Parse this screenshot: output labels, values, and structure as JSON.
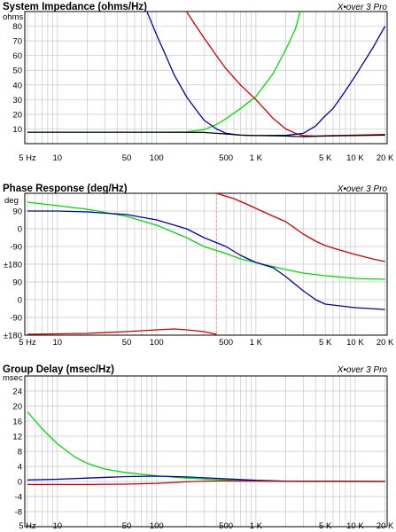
{
  "chart_data": [
    {
      "type": "line",
      "title": "System Impedance (ohms/Hz)",
      "brand": "X•over 3 Pro",
      "y_unit": "ohms",
      "x_scale": "log",
      "xlim": [
        4.7,
        21000
      ],
      "ylim": [
        0,
        90
      ],
      "x_ticks": [
        {
          "v": 5,
          "label": "5 Hz"
        },
        {
          "v": 10,
          "label": "10"
        },
        {
          "v": 50,
          "label": "50"
        },
        {
          "v": 100,
          "label": "100"
        },
        {
          "v": 500,
          "label": "500"
        },
        {
          "v": 1000,
          "label": "1 K"
        },
        {
          "v": 5000,
          "label": "5 K"
        },
        {
          "v": 10000,
          "label": "10 K"
        },
        {
          "v": 20000,
          "label": "20 K"
        }
      ],
      "y_ticks": [
        {
          "v": 10,
          "label": "10"
        },
        {
          "v": 20,
          "label": "20"
        },
        {
          "v": 30,
          "label": "30"
        },
        {
          "v": 40,
          "label": "40"
        },
        {
          "v": 50,
          "label": "50"
        },
        {
          "v": 60,
          "label": "60"
        },
        {
          "v": 70,
          "label": "70"
        },
        {
          "v": 80,
          "label": "80"
        }
      ],
      "grid": true,
      "series": [
        {
          "color": "#00dd00",
          "points": [
            [
              5,
              7.8
            ],
            [
              100,
              7.8
            ],
            [
              200,
              8
            ],
            [
              300,
              9.5
            ],
            [
              400,
              13
            ],
            [
              500,
              17
            ],
            [
              700,
              24
            ],
            [
              1000,
              32
            ],
            [
              1500,
              48
            ],
            [
              2000,
              64
            ],
            [
              2500,
              78
            ],
            [
              2800,
              90
            ]
          ]
        },
        {
          "color": "#cc0000",
          "points": [
            [
              200,
              90
            ],
            [
              250,
              80
            ],
            [
              300,
              72
            ],
            [
              400,
              60
            ],
            [
              500,
              51
            ],
            [
              700,
              40
            ],
            [
              1000,
              30
            ],
            [
              1500,
              17
            ],
            [
              2000,
              10
            ],
            [
              2500,
              7
            ],
            [
              3000,
              5.5
            ],
            [
              4000,
              5.2
            ],
            [
              6000,
              5.5
            ],
            [
              10000,
              5.8
            ],
            [
              20000,
              6.2
            ]
          ]
        },
        {
          "color": "#0000aa",
          "points": [
            [
              80,
              90
            ],
            [
              100,
              74
            ],
            [
              120,
              62
            ],
            [
              150,
              47
            ],
            [
              200,
              32
            ],
            [
              250,
              23
            ],
            [
              300,
              16
            ],
            [
              400,
              10
            ],
            [
              500,
              7
            ],
            [
              700,
              5.8
            ],
            [
              1000,
              5.5
            ],
            [
              1500,
              5.6
            ],
            [
              2000,
              5.6
            ],
            [
              3000,
              7
            ],
            [
              4000,
              12
            ],
            [
              5000,
              19
            ],
            [
              6000,
              24
            ],
            [
              8000,
              36
            ],
            [
              10000,
              46
            ],
            [
              15000,
              65
            ],
            [
              20000,
              80
            ]
          ]
        },
        {
          "color": "#000000",
          "points": [
            [
              5,
              7.8
            ],
            [
              100,
              7.8
            ],
            [
              300,
              7.6
            ],
            [
              500,
              6.6
            ],
            [
              700,
              5.8
            ],
            [
              1000,
              5.5
            ],
            [
              1500,
              5.4
            ],
            [
              2000,
              5.2
            ],
            [
              2500,
              4.9
            ],
            [
              3000,
              4.8
            ],
            [
              4000,
              5
            ],
            [
              6000,
              5.3
            ],
            [
              10000,
              5.5
            ],
            [
              20000,
              5.8
            ]
          ]
        }
      ]
    },
    {
      "type": "line",
      "title": "Phase Response (deg/Hz)",
      "brand": "X•over 3 Pro",
      "y_unit": "deg",
      "x_scale": "log",
      "xlim": [
        4.7,
        21000
      ],
      "ylim": [
        0,
        8
      ],
      "x_ticks": [
        {
          "v": 5,
          "label": "5 Hz"
        },
        {
          "v": 10,
          "label": "10"
        },
        {
          "v": 50,
          "label": "50"
        },
        {
          "v": 100,
          "label": "100"
        },
        {
          "v": 500,
          "label": "500"
        },
        {
          "v": 1000,
          "label": "1 K"
        },
        {
          "v": 5000,
          "label": "5 K"
        },
        {
          "v": 10000,
          "label": "10 K"
        },
        {
          "v": 20000,
          "label": "20 K"
        }
      ],
      "y_ticks": [
        {
          "v": 0,
          "label": "±180"
        },
        {
          "v": 1,
          "label": "-90"
        },
        {
          "v": 2,
          "label": "0"
        },
        {
          "v": 3,
          "label": "90"
        },
        {
          "v": 4,
          "label": "±180"
        },
        {
          "v": 5,
          "label": "-90"
        },
        {
          "v": 6,
          "label": "0"
        },
        {
          "v": 7,
          "label": "90"
        }
      ],
      "marker_x": 400,
      "grid": true,
      "series": [
        {
          "color": "#00dd00",
          "points": [
            [
              5,
              7.5
            ],
            [
              10,
              7.3
            ],
            [
              20,
              7.1
            ],
            [
              50,
              6.7
            ],
            [
              100,
              6.2
            ],
            [
              200,
              5.5
            ],
            [
              300,
              5.0
            ],
            [
              500,
              4.6
            ],
            [
              700,
              4.3
            ],
            [
              1000,
              4.1
            ],
            [
              2000,
              3.7
            ],
            [
              3000,
              3.5
            ],
            [
              5000,
              3.35
            ],
            [
              10000,
              3.2
            ],
            [
              20000,
              3.15
            ]
          ]
        },
        {
          "color": "#0000aa",
          "points": [
            [
              5,
              7.0
            ],
            [
              10,
              7.0
            ],
            [
              20,
              6.95
            ],
            [
              50,
              6.8
            ],
            [
              100,
              6.5
            ],
            [
              200,
              6.0
            ],
            [
              300,
              5.5
            ],
            [
              500,
              5.0
            ],
            [
              700,
              4.5
            ],
            [
              1000,
              4.1
            ],
            [
              1500,
              3.8
            ],
            [
              2000,
              3.3
            ],
            [
              3000,
              2.5
            ],
            [
              4000,
              2.0
            ],
            [
              5000,
              1.75
            ],
            [
              10000,
              1.55
            ],
            [
              20000,
              1.45
            ]
          ]
        },
        {
          "color": "#cc0000",
          "points": [
            [
              5,
              0.05
            ],
            [
              20,
              0.1
            ],
            [
              50,
              0.2
            ],
            [
              100,
              0.3
            ],
            [
              150,
              0.35
            ],
            [
              200,
              0.3
            ],
            [
              300,
              0.2
            ],
            [
              400,
              0.05
            ]
          ]
        },
        {
          "color": "#cc0000",
          "points": [
            [
              400,
              8.0
            ],
            [
              600,
              7.7
            ],
            [
              800,
              7.4
            ],
            [
              1000,
              7.15
            ],
            [
              1500,
              6.7
            ],
            [
              2000,
              6.4
            ],
            [
              3000,
              5.7
            ],
            [
              4000,
              5.3
            ],
            [
              5000,
              5.05
            ],
            [
              7000,
              4.8
            ],
            [
              10000,
              4.55
            ],
            [
              15000,
              4.3
            ],
            [
              20000,
              4.15
            ]
          ]
        }
      ]
    },
    {
      "type": "line",
      "title": "Group Delay (msec/Hz)",
      "brand": "X•over 3 Pro",
      "y_unit": "msec",
      "x_scale": "log",
      "xlim": [
        4.7,
        21000
      ],
      "ylim": [
        -12,
        28
      ],
      "x_ticks": [
        {
          "v": 5,
          "label": "5 Hz"
        },
        {
          "v": 10,
          "label": "10"
        },
        {
          "v": 50,
          "label": "50"
        },
        {
          "v": 100,
          "label": "100"
        },
        {
          "v": 500,
          "label": "500"
        },
        {
          "v": 1000,
          "label": "1 K"
        },
        {
          "v": 5000,
          "label": "5 K"
        },
        {
          "v": 10000,
          "label": "10 K"
        },
        {
          "v": 20000,
          "label": "20 K"
        }
      ],
      "y_ticks": [
        {
          "v": 24,
          "label": "24"
        },
        {
          "v": 20,
          "label": "20"
        },
        {
          "v": 16,
          "label": "16"
        },
        {
          "v": 12,
          "label": "12"
        },
        {
          "v": 8,
          "label": "8"
        },
        {
          "v": 4,
          "label": "4"
        },
        {
          "v": 0,
          "label": "0"
        },
        {
          "v": -4,
          "label": "-4"
        },
        {
          "v": -8,
          "label": "-8"
        }
      ],
      "grid": true,
      "series": [
        {
          "color": "#00dd00",
          "points": [
            [
              5,
              18.5
            ],
            [
              7,
              14
            ],
            [
              10,
              10
            ],
            [
              15,
              6.5
            ],
            [
              20,
              4.8
            ],
            [
              30,
              3.3
            ],
            [
              50,
              2.3
            ],
            [
              100,
              1.5
            ],
            [
              200,
              0.9
            ],
            [
              500,
              0.4
            ],
            [
              1000,
              0.15
            ],
            [
              2000,
              0.05
            ],
            [
              20000,
              0
            ]
          ]
        },
        {
          "color": "#0000aa",
          "points": [
            [
              5,
              0.4
            ],
            [
              10,
              0.6
            ],
            [
              20,
              0.9
            ],
            [
              50,
              1.3
            ],
            [
              100,
              1.4
            ],
            [
              200,
              1.2
            ],
            [
              500,
              0.7
            ],
            [
              1000,
              0.3
            ],
            [
              2000,
              0.1
            ],
            [
              20000,
              0
            ]
          ]
        },
        {
          "color": "#cc0000",
          "points": [
            [
              5,
              -0.8
            ],
            [
              20,
              -0.8
            ],
            [
              50,
              -0.7
            ],
            [
              100,
              -0.5
            ],
            [
              200,
              -0.1
            ],
            [
              300,
              0.1
            ],
            [
              500,
              0.15
            ],
            [
              1000,
              0.1
            ],
            [
              3000,
              0
            ],
            [
              20000,
              0
            ]
          ]
        }
      ]
    }
  ]
}
